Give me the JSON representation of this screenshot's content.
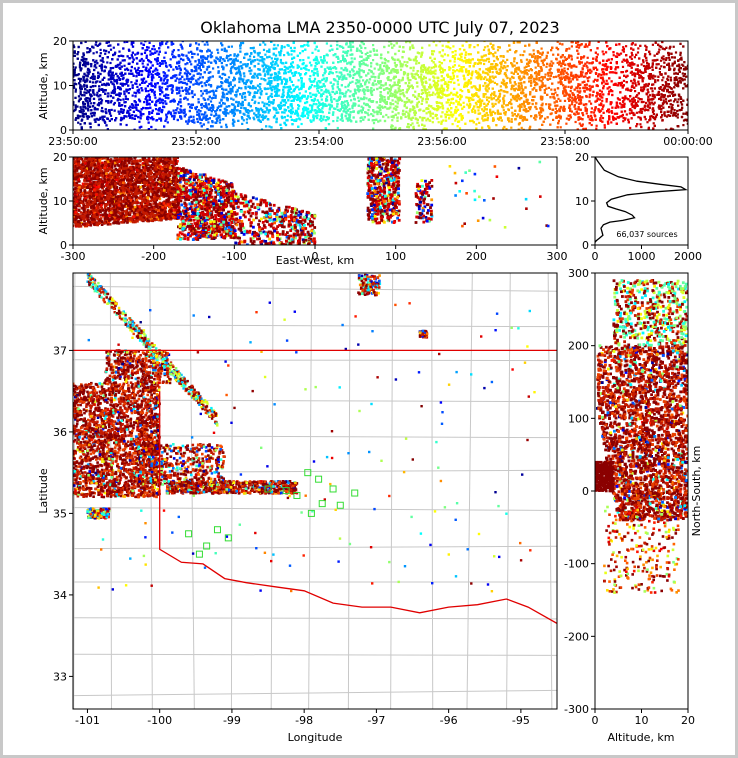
{
  "chart_data": [
    {
      "type": "scatter",
      "panel": "time-altitude",
      "title": "Oklahoma LMA 2350-0000 UTC July 07, 2023",
      "xlabel": "",
      "ylabel": "Altitude, km",
      "xticks": [
        "23:50:00",
        "23:52:00",
        "23:54:00",
        "23:56:00",
        "23:58:00",
        "00:00:00"
      ],
      "ylim": [
        0,
        20
      ],
      "yticks": [
        0,
        10,
        20
      ],
      "color_encoding": "time (blue → red, jet colormap)",
      "density_by_altitude_km": [
        [
          1,
          0.35
        ],
        [
          3,
          0.85
        ],
        [
          5,
          1.0
        ],
        [
          7,
          1.0
        ],
        [
          9,
          0.95
        ],
        [
          11,
          1.0
        ],
        [
          13,
          1.0
        ],
        [
          15,
          0.85
        ],
        [
          17,
          0.6
        ],
        [
          19,
          0.45
        ]
      ]
    },
    {
      "type": "scatter",
      "panel": "east-west-altitude",
      "xlabel": "East-West, km",
      "ylabel": "Altitude, km",
      "xlim": [
        -300,
        300
      ],
      "xticks": [
        -300,
        -200,
        -100,
        0,
        100,
        200,
        300
      ],
      "ylim": [
        0,
        20
      ],
      "yticks": [
        0,
        10,
        20
      ],
      "clusters": [
        {
          "x_range": [
            -300,
            -170
          ],
          "z_range": [
            4,
            20
          ],
          "density": "very high",
          "colors": "dark red"
        },
        {
          "x_range": [
            -170,
            -100
          ],
          "z_range": [
            1,
            18
          ],
          "density": "high",
          "colors": "mixed"
        },
        {
          "x_range": [
            -100,
            0
          ],
          "z_range": [
            0,
            12
          ],
          "density": "medium",
          "colors": "mixed"
        },
        {
          "x_range": [
            65,
            105
          ],
          "z_range": [
            5,
            20
          ],
          "density": "medium",
          "colors": "mixed"
        },
        {
          "x_range": [
            125,
            145
          ],
          "z_range": [
            5,
            15
          ],
          "density": "low",
          "colors": "mixed"
        }
      ]
    },
    {
      "type": "line",
      "panel": "altitude-histogram",
      "xlim": [
        0,
        2000
      ],
      "xticks": [
        0,
        1000,
        2000
      ],
      "ylim": [
        0,
        20
      ],
      "yticks": [
        0,
        10,
        20
      ],
      "annotation": "66,037 sources",
      "points": [
        [
          0,
          20
        ],
        [
          60,
          19
        ],
        [
          200,
          17
        ],
        [
          500,
          15.5
        ],
        [
          900,
          14.5
        ],
        [
          1400,
          13.8
        ],
        [
          1850,
          13.2
        ],
        [
          1950,
          12.6
        ],
        [
          1300,
          12.1
        ],
        [
          700,
          11.4
        ],
        [
          350,
          10.4
        ],
        [
          250,
          9.6
        ],
        [
          280,
          8.8
        ],
        [
          450,
          8.2
        ],
        [
          650,
          7.6
        ],
        [
          800,
          6.8
        ],
        [
          850,
          6.2
        ],
        [
          600,
          5.6
        ],
        [
          320,
          5.2
        ],
        [
          180,
          4.6
        ],
        [
          130,
          3.8
        ],
        [
          150,
          3.0
        ],
        [
          170,
          2.2
        ],
        [
          90,
          1.5
        ],
        [
          30,
          1.0
        ],
        [
          0,
          0.6
        ]
      ]
    },
    {
      "type": "scatter",
      "panel": "plan-view-map",
      "xlabel": "Longitude",
      "ylabel": "Latitude",
      "xlim": [
        -101.2,
        -94.5
      ],
      "ylim": [
        32.6,
        37.95
      ],
      "xticks": [
        -101,
        -100,
        -99,
        -98,
        -97,
        -96,
        -95
      ],
      "yticks": [
        33,
        34,
        35,
        36,
        37
      ],
      "stations_marker": "green open squares",
      "stations": [
        [
          -97.95,
          35.5
        ],
        [
          -97.8,
          35.42
        ],
        [
          -97.6,
          35.3
        ],
        [
          -97.3,
          35.25
        ],
        [
          -97.5,
          35.1
        ],
        [
          -97.75,
          35.12
        ],
        [
          -97.9,
          35.0
        ],
        [
          -98.1,
          35.22
        ],
        [
          -98.25,
          35.28
        ],
        [
          -98.5,
          35.3
        ],
        [
          -99.05,
          34.7
        ],
        [
          -99.35,
          34.6
        ],
        [
          -99.45,
          34.5
        ],
        [
          -99.6,
          34.75
        ],
        [
          -99.2,
          34.8
        ]
      ]
    },
    {
      "type": "scatter",
      "panel": "altitude-north-south",
      "xlabel": "Altitude, km",
      "ylabel": "North-South, km",
      "xlim": [
        0,
        20
      ],
      "xticks": [
        0,
        10,
        20
      ],
      "ylim": [
        -300,
        300
      ],
      "yticks": [
        -300,
        -200,
        -100,
        0,
        100,
        200,
        300
      ]
    }
  ]
}
